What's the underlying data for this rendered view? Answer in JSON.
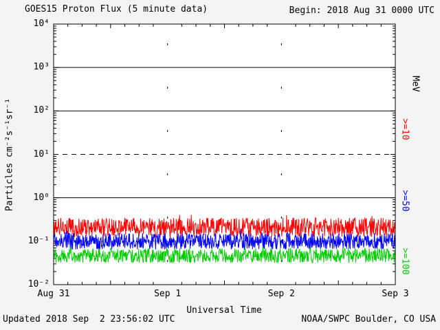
{
  "colors": {
    "background": "#f4f4f4",
    "plot_background": "#ffffff",
    "axis": "#000000"
  },
  "chart_data": {
    "type": "line",
    "title": "GOES15 Proton Flux (5 minute data)",
    "begin_label": "Begin: 2018 Aug 31 0000 UTC",
    "updated_label": "Updated 2018 Sep  2 23:56:02 UTC",
    "source_label": "NOAA/SWPC Boulder, CO USA",
    "xlabel": "Universal Time",
    "ylabel": "Particles cm⁻²s⁻¹sr⁻¹",
    "right_axis_label": "MeV",
    "x_tick_labels": [
      "Aug 31",
      "Sep 1",
      "Sep 2",
      "Sep 3"
    ],
    "y_tick_labels": [
      "10⁴",
      "10³",
      "10²",
      "10¹",
      "10⁰",
      "10⁻¹",
      "10⁻²"
    ],
    "y_log10_range": [
      -2,
      4
    ],
    "x_range_days": 3,
    "points_per_day": 288,
    "gridlines": {
      "horizontal": [
        {
          "log10": 3,
          "style": "solid"
        },
        {
          "log10": 2,
          "style": "solid"
        },
        {
          "log10": 1,
          "style": "dashed"
        },
        {
          "log10": 0,
          "style": "solid"
        },
        {
          "log10": -1,
          "style": "dotted"
        }
      ],
      "vertical_days": [
        1,
        2
      ]
    },
    "series": [
      {
        "label": ">=10",
        "name": "gte-10-MeV",
        "color": "#ff0000",
        "baseline_log10": -0.68,
        "noise_log10": 0.22,
        "spike_prob": 0.03,
        "spike_log10": 0.25
      },
      {
        "label": ">=50",
        "name": "gte-50-MeV",
        "color": "#0000ff",
        "baseline_log10": -1.0,
        "noise_log10": 0.19,
        "spike_prob": 0.02,
        "spike_log10": 0.18
      },
      {
        "label": ">=100",
        "name": "gte-100-MeV",
        "color": "#00cc00",
        "baseline_log10": -1.33,
        "noise_log10": 0.17,
        "spike_prob": 0.02,
        "spike_log10": 0.14
      }
    ]
  }
}
